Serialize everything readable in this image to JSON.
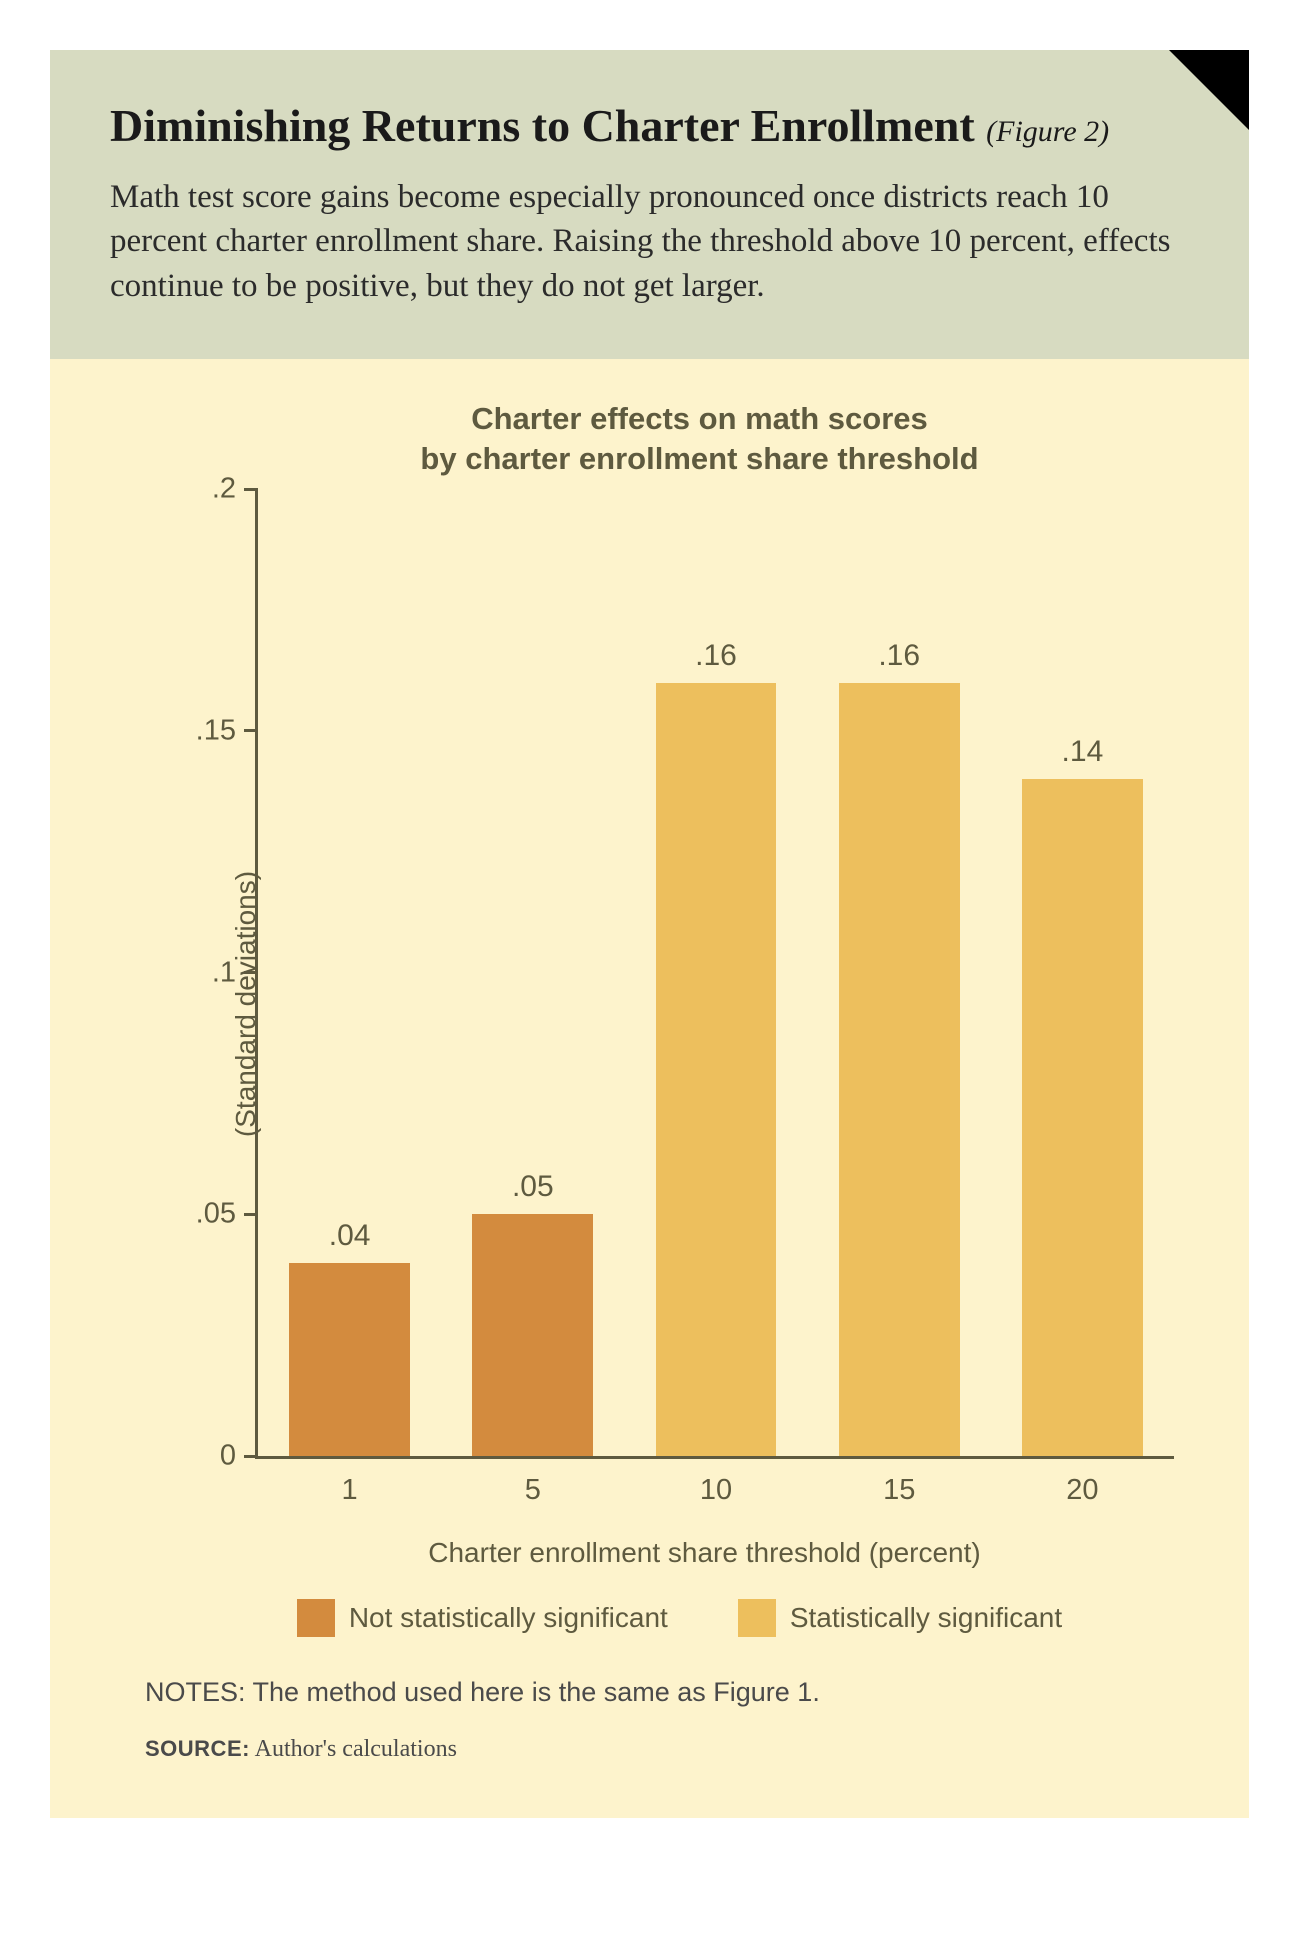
{
  "header": {
    "title": "Diminishing Returns to Charter Enrollment",
    "figure_label": "(Figure 2)",
    "subtitle": "Math test score gains become especially pronounced once districts reach 10 percent charter enrollment share. Raising the threshold above 10 percent, effects continue to be positive, but they do not get larger.",
    "title_fontsize": 46,
    "figure_label_fontsize": 30,
    "subtitle_fontsize": 33,
    "bg_color": "#d7dbc1",
    "text_color": "#1a1a1a"
  },
  "chart": {
    "type": "bar",
    "title_line1": "Charter effects on math scores",
    "title_line2": "by charter enrollment share threshold",
    "title_fontsize": 31,
    "bg_color": "#fdf3cc",
    "accent_color": "#5e5a3f",
    "y_axis": {
      "label": "(Standard deviations)",
      "label_fontsize": 28,
      "min": 0,
      "max": 0.2,
      "ticks": [
        0,
        0.05,
        0.1,
        0.15,
        0.2
      ],
      "tick_labels": [
        "0",
        ".05",
        ".1",
        ".15",
        ".2"
      ],
      "tick_fontsize": 29
    },
    "x_axis": {
      "label": "Charter enrollment share threshold (percent)",
      "label_fontsize": 28,
      "tick_fontsize": 29
    },
    "bars": [
      {
        "category": "1",
        "value": 0.04,
        "value_label": ".04",
        "color": "#d38b3e",
        "significant": false
      },
      {
        "category": "5",
        "value": 0.05,
        "value_label": ".05",
        "color": "#d38b3e",
        "significant": false
      },
      {
        "category": "10",
        "value": 0.16,
        "value_label": ".16",
        "color": "#edbf5d",
        "significant": true
      },
      {
        "category": "15",
        "value": 0.16,
        "value_label": ".16",
        "color": "#edbf5d",
        "significant": true
      },
      {
        "category": "20",
        "value": 0.14,
        "value_label": ".14",
        "color": "#edbf5d",
        "significant": true
      }
    ],
    "value_label_fontsize": 30,
    "bar_width_pct": 66,
    "legend": [
      {
        "label": "Not statistically significant",
        "color": "#d38b3e"
      },
      {
        "label": "Statistically significant",
        "color": "#edbf5d"
      }
    ],
    "legend_fontsize": 28
  },
  "notes": {
    "text": "NOTES: The method used here is the same as Figure 1.",
    "fontsize": 27
  },
  "source": {
    "label": "SOURCE:",
    "text": " Author's calculations",
    "label_fontsize": 22,
    "text_fontsize": 24
  }
}
